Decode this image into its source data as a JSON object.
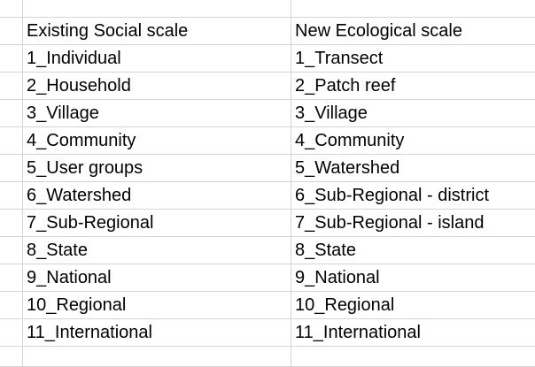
{
  "table": {
    "headers": {
      "social": "Existing Social scale",
      "ecological": "New Ecological scale"
    },
    "rows": [
      {
        "social": "1_Individual",
        "ecological": "1_Transect"
      },
      {
        "social": "2_Household",
        "ecological": "2_Patch reef"
      },
      {
        "social": "3_Village",
        "ecological": "3_Village"
      },
      {
        "social": "4_Community",
        "ecological": "4_Community"
      },
      {
        "social": "5_User groups",
        "ecological": "5_Watershed"
      },
      {
        "social": "6_Watershed",
        "ecological": "6_Sub-Regional - district"
      },
      {
        "social": "7_Sub-Regional",
        "ecological": "7_Sub-Regional - island"
      },
      {
        "social": "8_State",
        "ecological": "8_State"
      },
      {
        "social": "9_National",
        "ecological": "9_National"
      },
      {
        "social": "10_Regional",
        "ecological": "10_Regional"
      },
      {
        "social": "11_International",
        "ecological": "11_International"
      }
    ]
  }
}
